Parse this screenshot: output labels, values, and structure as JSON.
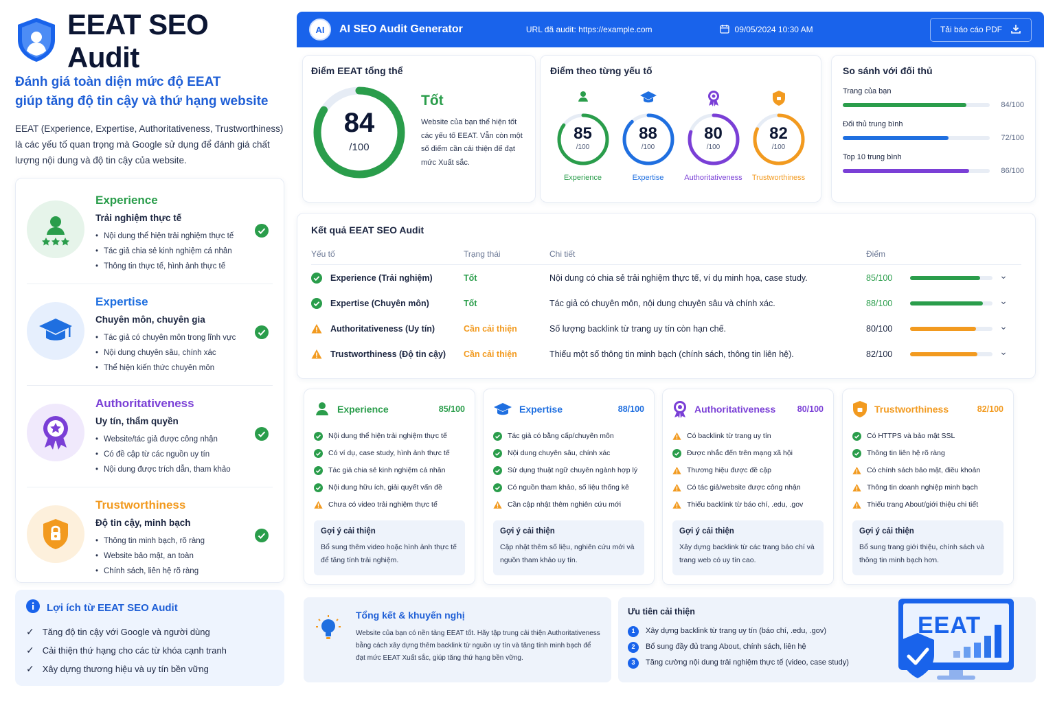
{
  "brand": {
    "title": "EEAT SEO Audit"
  },
  "lead": {
    "line1": "Đánh giá toàn diện mức độ EEAT",
    "line2": "giúp tăng độ tin cậy và thứ hạng website"
  },
  "intro": "EEAT (Experience, Expertise, Authoritativeness, Trustworthiness) là các yếu tố quan trọng mà Google sử dụng để đánh giá chất lượng nội dung và độ tin cậy của website.",
  "colors": {
    "primary": "#1963eb",
    "green": "#2a9d4b",
    "blue": "#1f6fe0",
    "purple": "#7a3fd6",
    "orange": "#f29a1f"
  },
  "factors": [
    {
      "title": "Experience",
      "subtitle": "Trải nghiệm thực tế",
      "bullets": [
        "Nội dung thể hiện trải nghiệm thực tế",
        "Tác giả chia sẻ kinh nghiệm cá nhân",
        "Thông tin thực tế, hình ảnh thực tế"
      ],
      "icon": "user-stars-icon"
    },
    {
      "title": "Expertise",
      "subtitle": "Chuyên môn, chuyên gia",
      "bullets": [
        "Tác giả có chuyên môn trong lĩnh vực",
        "Nội dung chuyên sâu, chính xác",
        "Thể hiện kiến thức chuyên môn"
      ],
      "icon": "graduation-cap-icon"
    },
    {
      "title": "Authoritativeness",
      "subtitle": "Uy tín, thẩm quyền",
      "bullets": [
        "Website/tác giả được công nhận",
        "Có đề cập từ các nguồn uy tín",
        "Nội dung được trích dẫn, tham khảo"
      ],
      "icon": "award-badge-icon"
    },
    {
      "title": "Trustworthiness",
      "subtitle": "Độ tin cậy, minh bạch",
      "bullets": [
        "Thông tin minh bạch, rõ ràng",
        "Website bảo mật, an toàn",
        "Chính sách, liên hệ rõ ràng"
      ],
      "icon": "shield-lock-icon"
    }
  ],
  "benefits": {
    "title": "Lợi ích từ EEAT SEO Audit",
    "items": [
      "Tăng độ tin cậy với Google và người dùng",
      "Cải thiện thứ hạng cho các từ khóa cạnh tranh",
      "Xây dựng thương hiệu và uy tín bền vững"
    ]
  },
  "header": {
    "logo": "AI",
    "title": "AI SEO Audit Generator",
    "url": "URL đã audit: https://example.com",
    "datetime": "09/05/2024 10:30 AM",
    "download": "Tải báo cáo PDF"
  },
  "overall": {
    "title": "Điểm EEAT tổng thể",
    "score": 84,
    "score_text": "84",
    "max": "/100",
    "rating": "Tốt",
    "desc": "Website của bạn thể hiện tốt các yếu tố EEAT. Vẫn còn một số điểm cần cải thiện để đạt mức Xuất sắc."
  },
  "scores": {
    "title": "Điểm theo từng yếu tố",
    "items": [
      {
        "label": "Experience",
        "value": 85,
        "value_text": "85",
        "max": "/100",
        "color": "#2a9d4b"
      },
      {
        "label": "Expertise",
        "value": 88,
        "value_text": "88",
        "max": "/100",
        "color": "#1f6fe0"
      },
      {
        "label": "Authoritativeness",
        "value": 80,
        "value_text": "80",
        "max": "/100",
        "color": "#7a3fd6"
      },
      {
        "label": "Trustworthiness",
        "value": 82,
        "value_text": "82",
        "max": "/100",
        "color": "#f29a1f"
      }
    ]
  },
  "compare": {
    "title": "So sánh với đối thủ",
    "rows": [
      {
        "label": "Trang của bạn",
        "value": 84,
        "value_text": "84/100",
        "color": "#2a9d4b"
      },
      {
        "label": "Đối thủ trung bình",
        "value": 72,
        "value_text": "72/100",
        "color": "#1f6fe0"
      },
      {
        "label": "Top 10 trung bình",
        "value": 86,
        "value_text": "86/100",
        "color": "#7a3fd6"
      }
    ]
  },
  "results": {
    "title": "Kết quả EEAT SEO Audit",
    "columns": [
      "Yếu tố",
      "Trạng thái",
      "Chi tiết",
      "Điểm"
    ],
    "rows": [
      {
        "factor": "Experience (Trải nghiệm)",
        "status": "Tốt",
        "status_type": "good",
        "detail": "Nội dung có chia sẻ trải nghiệm thực tế, ví dụ minh họa, case study.",
        "score_text": "85/100",
        "score": 85,
        "color": "#2a9d4b"
      },
      {
        "factor": "Expertise (Chuyên môn)",
        "status": "Tốt",
        "status_type": "good",
        "detail": "Tác giả có chuyên môn, nội dung chuyên sâu và chính xác.",
        "score_text": "88/100",
        "score": 88,
        "color": "#2a9d4b"
      },
      {
        "factor": "Authoritativeness (Uy tín)",
        "status": "Cần cải thiện",
        "status_type": "warn",
        "detail": "Số lượng backlink từ trang uy tín còn hạn chế.",
        "score_text": "80/100",
        "score": 80,
        "color": "#f29a1f"
      },
      {
        "factor": "Trustworthiness (Độ tin cậy)",
        "status": "Cần cải thiện",
        "status_type": "warn",
        "detail": "Thiếu một số thông tin minh bạch (chính sách, thông tin liên hệ).",
        "score_text": "82/100",
        "score": 82,
        "color": "#f29a1f"
      }
    ]
  },
  "details": [
    {
      "title": "Experience",
      "score": "85/100",
      "color": "#2a9d4b",
      "icon": "user-stars-icon",
      "items": [
        {
          "text": "Nội dung thể hiện trải nghiệm thực tế",
          "type": "ok"
        },
        {
          "text": "Có ví dụ, case study, hình ảnh thực tế",
          "type": "ok"
        },
        {
          "text": "Tác giả chia sẻ kinh nghiệm cá nhân",
          "type": "ok"
        },
        {
          "text": "Nội dung hữu ích, giải quyết vấn đề",
          "type": "ok"
        },
        {
          "text": "Chưa có video trải nghiệm thực tế",
          "type": "warn"
        }
      ],
      "sug_title": "Gợi ý cải thiện",
      "sug_body": "Bổ sung thêm video hoặc hình ảnh thực tế để tăng tính trải nghiệm."
    },
    {
      "title": "Expertise",
      "score": "88/100",
      "color": "#1f6fe0",
      "icon": "graduation-cap-icon",
      "items": [
        {
          "text": "Tác giả có bằng cấp/chuyên môn",
          "type": "ok"
        },
        {
          "text": "Nội dung chuyên sâu, chính xác",
          "type": "ok"
        },
        {
          "text": "Sử dụng thuật ngữ chuyên ngành hợp lý",
          "type": "ok"
        },
        {
          "text": "Có nguồn tham khảo, số liệu thống kê",
          "type": "ok"
        },
        {
          "text": "Cần cập nhật thêm nghiên cứu mới",
          "type": "warn"
        }
      ],
      "sug_title": "Gợi ý cải thiện",
      "sug_body": "Cập nhật thêm số liệu, nghiên cứu mới và nguồn tham khảo uy tín."
    },
    {
      "title": "Authoritativeness",
      "score": "80/100",
      "color": "#7a3fd6",
      "icon": "award-badge-icon",
      "items": [
        {
          "text": "Có backlink từ trang uy tín",
          "type": "warn"
        },
        {
          "text": "Được nhắc đến trên mạng xã hội",
          "type": "ok"
        },
        {
          "text": "Thương hiệu được đề cập",
          "type": "warn"
        },
        {
          "text": "Có tác giả/website được công nhận",
          "type": "warn"
        },
        {
          "text": "Thiếu backlink từ báo chí, .edu, .gov",
          "type": "warn"
        }
      ],
      "sug_title": "Gợi ý cải thiện",
      "sug_body": "Xây dựng backlink từ các trang báo chí và trang web có uy tín cao."
    },
    {
      "title": "Trustworthiness",
      "score": "82/100",
      "color": "#f29a1f",
      "icon": "shield-lock-icon",
      "items": [
        {
          "text": "Có HTTPS và bảo mật SSL",
          "type": "ok"
        },
        {
          "text": "Thông tin liên hệ rõ ràng",
          "type": "ok"
        },
        {
          "text": "Có chính sách bảo mật, điều khoản",
          "type": "warn"
        },
        {
          "text": "Thông tin doanh nghiệp minh bạch",
          "type": "warn"
        },
        {
          "text": "Thiếu trang About/giới thiệu chi tiết",
          "type": "warn"
        }
      ],
      "sug_title": "Gợi ý cải thiện",
      "sug_body": "Bổ sung trang giới thiệu, chính sách và thông tin minh bạch hơn."
    }
  ],
  "summary": {
    "title": "Tổng kết & khuyến nghị",
    "body": "Website của bạn có nền tảng EEAT tốt. Hãy tập trung cải thiện Authoritativeness bằng cách xây dựng thêm backlink từ nguồn uy tín và tăng tính minh bạch để đạt mức EEAT Xuất sắc, giúp tăng thứ hạng bền vững."
  },
  "priority": {
    "title": "Ưu tiên cải thiện",
    "items": [
      {
        "n": "1",
        "text": "Xây dựng backlink từ trang uy tín (báo chí, .edu, .gov)"
      },
      {
        "n": "2",
        "text": "Bổ sung đầy đủ trang About, chính sách, liên hệ"
      },
      {
        "n": "3",
        "text": "Tăng cường nội dung trải nghiệm thực tế (video, case study)"
      }
    ],
    "monitor_text": "EEAT"
  }
}
